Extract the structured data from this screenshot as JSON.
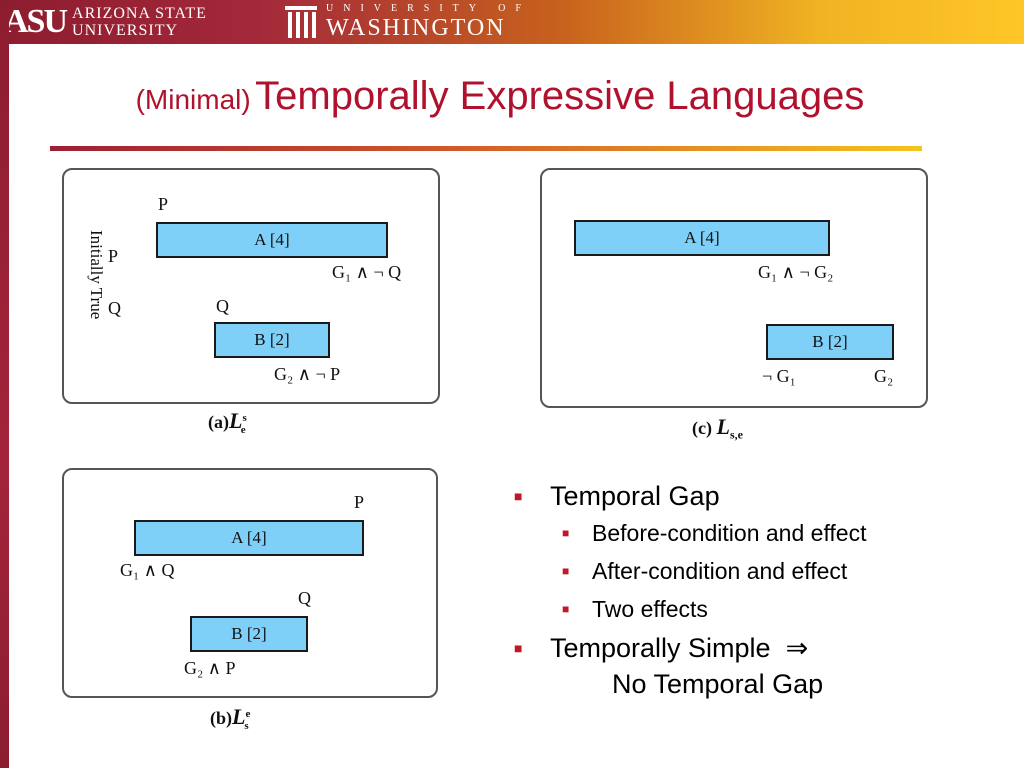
{
  "header": {
    "asu_mark": "ASU",
    "asu_line1": "ARIZONA STATE",
    "asu_line2": "UNIVERSITY",
    "uw_line1": "UNIVERSITY OF",
    "uw_line2": "WASHINGTON"
  },
  "title": {
    "prefix": "(Minimal)",
    "main": "Temporally Expressive Languages"
  },
  "figure_a": {
    "side_text": "Initially True",
    "p_left": "P",
    "q_left": "Q",
    "p_top": "P",
    "bar_a": "A [4]",
    "cond_a": "G₁ ∧ ¬ Q",
    "q_mid": "Q",
    "bar_b": "B [2]",
    "cond_b": "G₂ ∧ ¬ P",
    "caption_prefix": "(a)",
    "caption_sym": "L",
    "caption_sup": "s",
    "caption_sub": "e"
  },
  "figure_b": {
    "p_top": "P",
    "bar_a": "A [4]",
    "cond_a": "G₁ ∧ Q",
    "q_mid": "Q",
    "bar_b": "B [2]",
    "cond_b": "G₂ ∧ P",
    "caption_prefix": "(b)",
    "caption_sym": "L",
    "caption_sup": "e",
    "caption_sub": "s"
  },
  "figure_c": {
    "bar_a": "A [4]",
    "cond_a": "G₁ ∧ ¬ G₂",
    "bar_b": "B [2]",
    "cond_b1": "¬ G₁",
    "cond_b2": "G₂",
    "caption_prefix": "(c)",
    "caption_sym": "L",
    "caption_sub": "s,e"
  },
  "bullets": {
    "item1": "Temporal Gap",
    "sub1": "Before-condition and effect",
    "sub2": "After-condition and effect",
    "sub3": "Two effects",
    "item2": "Temporally Simple  ⇒",
    "item2_cont": "No Temporal Gap"
  },
  "colors": {
    "title": "#b0122e",
    "bar_fill": "#7fd0f8",
    "bullet": "#c0182a"
  }
}
